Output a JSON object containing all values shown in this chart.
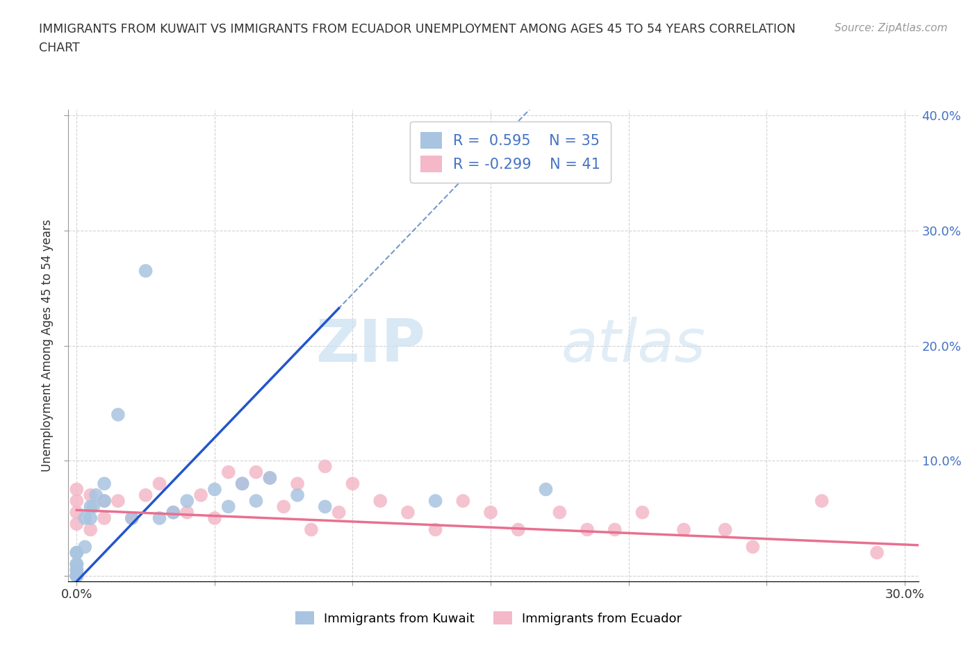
{
  "title_line1": "IMMIGRANTS FROM KUWAIT VS IMMIGRANTS FROM ECUADOR UNEMPLOYMENT AMONG AGES 45 TO 54 YEARS CORRELATION",
  "title_line2": "CHART",
  "source_text": "Source: ZipAtlas.com",
  "ylabel": "Unemployment Among Ages 45 to 54 years",
  "legend_label1": "Immigrants from Kuwait",
  "legend_label2": "Immigrants from Ecuador",
  "R1": 0.595,
  "N1": 35,
  "R2": -0.299,
  "N2": 41,
  "xlim": [
    -0.003,
    0.305
  ],
  "ylim": [
    -0.005,
    0.405
  ],
  "xticks": [
    0.0,
    0.05,
    0.1,
    0.15,
    0.2,
    0.25,
    0.3
  ],
  "yticks": [
    0.0,
    0.1,
    0.2,
    0.3,
    0.4
  ],
  "xtick_labels": [
    "0.0%",
    "",
    "",
    "",
    "",
    "",
    "30.0%"
  ],
  "ytick_labels_left": [
    "",
    "",
    "",
    "",
    ""
  ],
  "ytick_labels_right": [
    "",
    "10.0%",
    "20.0%",
    "30.0%",
    "40.0%"
  ],
  "color_kuwait": "#a8c4e0",
  "color_ecuador": "#f4b8c8",
  "trend_color_kuwait": "#2255cc",
  "trend_color_ecuador": "#e87090",
  "watermark_zip": "ZIP",
  "watermark_atlas": "atlas",
  "kuwait_scatter_x": [
    0.0,
    0.0,
    0.0,
    0.0,
    0.0,
    0.0,
    0.0,
    0.0,
    0.0,
    0.0,
    0.0,
    0.0,
    0.003,
    0.003,
    0.005,
    0.005,
    0.006,
    0.007,
    0.01,
    0.01,
    0.015,
    0.02,
    0.025,
    0.03,
    0.035,
    0.04,
    0.05,
    0.055,
    0.06,
    0.065,
    0.07,
    0.08,
    0.09,
    0.13,
    0.17
  ],
  "kuwait_scatter_y": [
    0.0,
    0.0,
    0.0,
    0.0,
    0.0,
    0.0,
    0.005,
    0.005,
    0.01,
    0.01,
    0.02,
    0.02,
    0.025,
    0.05,
    0.05,
    0.06,
    0.06,
    0.07,
    0.065,
    0.08,
    0.14,
    0.05,
    0.265,
    0.05,
    0.055,
    0.065,
    0.075,
    0.06,
    0.08,
    0.065,
    0.085,
    0.07,
    0.06,
    0.065,
    0.075
  ],
  "ecuador_scatter_x": [
    0.0,
    0.0,
    0.0,
    0.0,
    0.005,
    0.005,
    0.01,
    0.01,
    0.015,
    0.02,
    0.025,
    0.03,
    0.035,
    0.04,
    0.045,
    0.05,
    0.055,
    0.06,
    0.065,
    0.07,
    0.075,
    0.08,
    0.085,
    0.09,
    0.095,
    0.1,
    0.11,
    0.12,
    0.13,
    0.14,
    0.15,
    0.16,
    0.175,
    0.185,
    0.195,
    0.205,
    0.22,
    0.235,
    0.245,
    0.27,
    0.29
  ],
  "ecuador_scatter_y": [
    0.045,
    0.055,
    0.065,
    0.075,
    0.04,
    0.07,
    0.05,
    0.065,
    0.065,
    0.05,
    0.07,
    0.08,
    0.055,
    0.055,
    0.07,
    0.05,
    0.09,
    0.08,
    0.09,
    0.085,
    0.06,
    0.08,
    0.04,
    0.095,
    0.055,
    0.08,
    0.065,
    0.055,
    0.04,
    0.065,
    0.055,
    0.04,
    0.055,
    0.04,
    0.04,
    0.055,
    0.04,
    0.04,
    0.025,
    0.065,
    0.02
  ],
  "background_color": "#ffffff",
  "grid_color": "#c8c8c8"
}
